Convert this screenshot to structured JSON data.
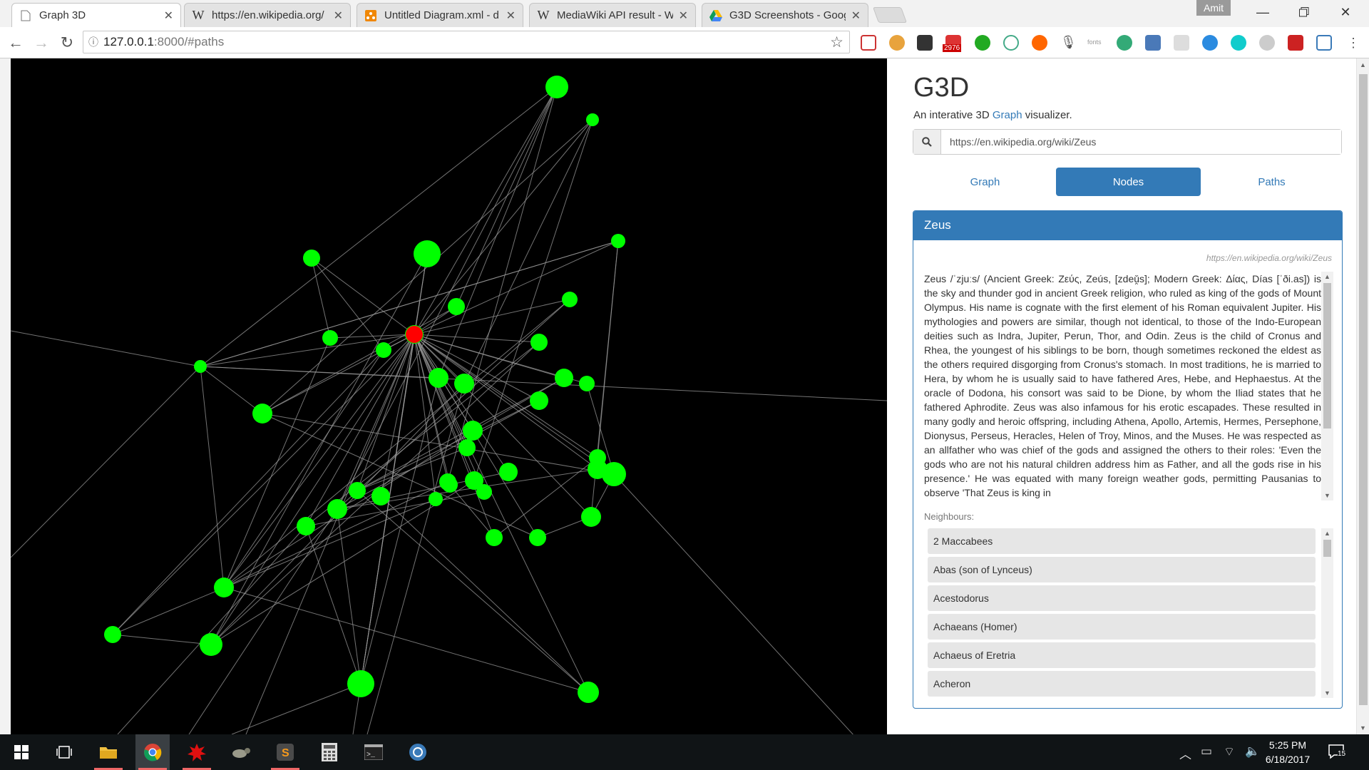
{
  "browser": {
    "tabs": [
      {
        "title": "Graph 3D",
        "icon": "page-icon",
        "active": true
      },
      {
        "title": "https://en.wikipedia.org/",
        "icon": "wikipedia-icon",
        "active": false
      },
      {
        "title": "Untitled Diagram.xml - d",
        "icon": "drawio-icon",
        "active": false
      },
      {
        "title": "MediaWiki API result - W",
        "icon": "wikipedia-icon",
        "active": false
      },
      {
        "title": "G3D Screenshots - Goog",
        "icon": "google-drive-icon",
        "active": false
      }
    ],
    "profile_name": "Amit",
    "url_host": "127.0.0.1",
    "url_rest": ":8000/#paths",
    "gmail_badge": "2976",
    "fonts_ext_label": "fonts"
  },
  "app": {
    "title": "G3D",
    "subtitle_before": "An interative 3D ",
    "subtitle_link": "Graph",
    "subtitle_after": " visualizer.",
    "search_value": "https://en.wikipedia.org/wiki/Zeus",
    "tabs": [
      "Graph",
      "Nodes",
      "Paths"
    ],
    "active_tab": "Nodes",
    "node": {
      "title": "Zeus",
      "source_url": "https://en.wikipedia.org/wiki/Zeus",
      "summary": "Zeus /ˈzjuːs/ (Ancient Greek: Ζεύς, Zeús, [zdeǔ̯s]; Modern Greek: Δίας, Días [ˈði.as]) is the sky and thunder god in ancient Greek religion, who ruled as king of the gods of Mount Olympus. His name is cognate with the first element of his Roman equivalent Jupiter. His mythologies and powers are similar, though not identical, to those of the Indo-European deities such as Indra, Jupiter, Perun, Thor, and Odin. Zeus is the child of Cronus and Rhea, the youngest of his siblings to be born, though sometimes reckoned the eldest as the others required disgorging from Cronus's stomach. In most traditions, he is married to Hera, by whom he is usually said to have fathered Ares, Hebe, and Hephaestus. At the oracle of Dodona, his consort was said to be Dione, by whom the Iliad states that he fathered Aphrodite. Zeus was also infamous for his erotic escapades. These resulted in many godly and heroic offspring, including Athena, Apollo, Artemis, Hermes, Persephone, Dionysus, Perseus, Heracles, Helen of Troy, Minos, and the Muses. He was respected as an allfather who was chief of the gods and assigned the others to their roles: 'Even the gods who are not his natural children address him as Father, and all the gods rise in his presence.' He was equated with many foreign weather gods, permitting Pausanias to observe 'That Zeus is king in",
      "neighbours_label": "Neighbours:",
      "neighbours": [
        "2 Maccabees",
        "Abas (son of Lynceus)",
        "Acestodorus",
        "Achaeans (Homer)",
        "Achaeus of Eretria",
        "Acheron"
      ]
    }
  },
  "taskbar": {
    "time": "5:25 PM",
    "date": "6/18/2017",
    "notification_count": "15"
  },
  "colors": {
    "node": "#00ff00",
    "selected_node": "#ff0000",
    "edge": "#9a9a9a",
    "accent": "#337ab7"
  }
}
